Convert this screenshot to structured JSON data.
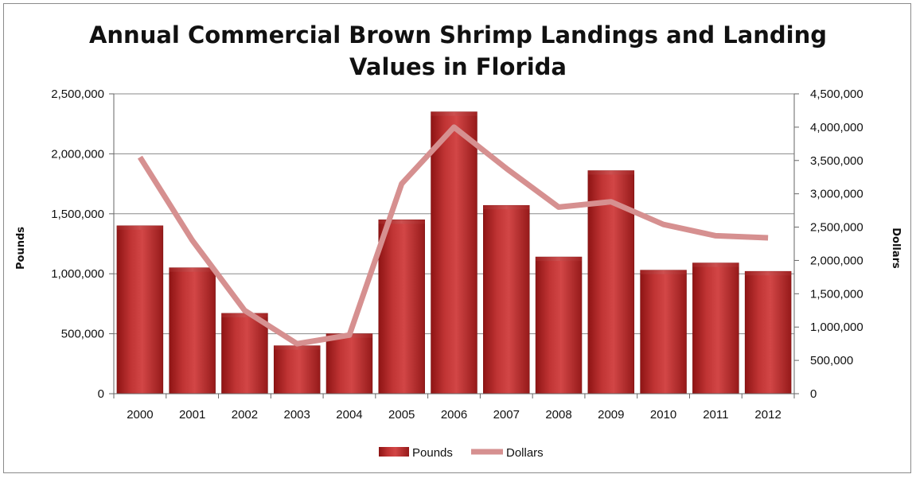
{
  "chart_data": {
    "type": "bar",
    "title_line1": "Annual Commercial Brown Shrimp Landings and Landing",
    "title_line2": "Values in Florida",
    "categories": [
      "2000",
      "2001",
      "2002",
      "2003",
      "2004",
      "2005",
      "2006",
      "2007",
      "2008",
      "2009",
      "2010",
      "2011",
      "2012"
    ],
    "series": [
      {
        "name": "Pounds",
        "type": "bar",
        "axis": "left",
        "color": "#b52a2a",
        "values": [
          1400000,
          1050000,
          670000,
          400000,
          500000,
          1450000,
          2350000,
          1570000,
          1140000,
          1860000,
          1030000,
          1090000,
          1020000
        ]
      },
      {
        "name": "Dollars",
        "type": "line",
        "axis": "right",
        "color": "#d69090",
        "values": [
          3550000,
          2300000,
          1250000,
          750000,
          880000,
          3150000,
          4000000,
          3380000,
          2800000,
          2880000,
          2540000,
          2370000,
          2340000
        ]
      }
    ],
    "ylabel": "Pounds",
    "y2label": "Dollars",
    "ylim": [
      0,
      2500000
    ],
    "y2lim": [
      0,
      4500000
    ],
    "yticks": [
      "0",
      "500,000",
      "1,000,000",
      "1,500,000",
      "2,000,000",
      "2,500,000"
    ],
    "y2ticks": [
      "0",
      "500,000",
      "1,000,000",
      "1,500,000",
      "2,000,000",
      "2,500,000",
      "3,000,000",
      "3,500,000",
      "4,000,000",
      "4,500,000"
    ],
    "grid": true,
    "legend_position": "bottom"
  }
}
